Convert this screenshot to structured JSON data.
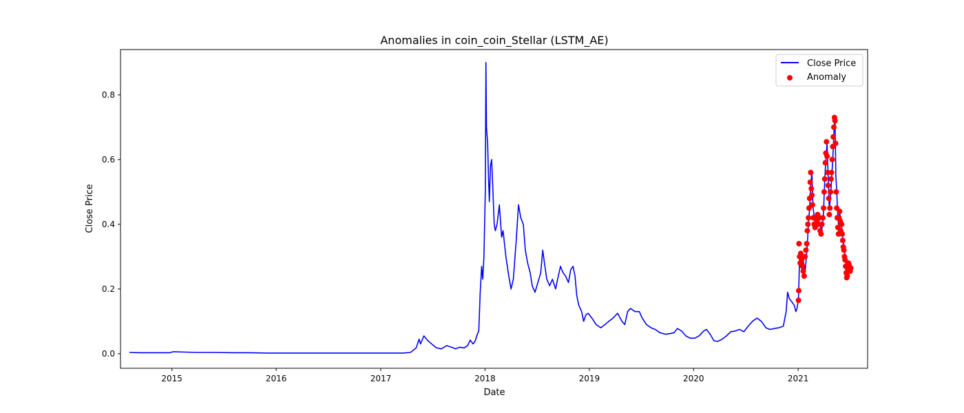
{
  "chart_data": {
    "type": "line",
    "title": "Anomalies in coin_coin_Stellar (LSTM_AE)",
    "xlabel": "Date",
    "ylabel": "Close Price",
    "xlim": [
      "2014-07-05",
      "2021-09-01"
    ],
    "ylim": [
      -0.045,
      0.94
    ],
    "x_ticks": [
      "2015-01-01",
      "2016-01-01",
      "2017-01-01",
      "2018-01-01",
      "2019-01-01",
      "2020-01-01",
      "2021-01-01"
    ],
    "x_tick_labels": [
      "2015",
      "2016",
      "2017",
      "2018",
      "2019",
      "2020",
      "2021"
    ],
    "y_ticks": [
      0.0,
      0.2,
      0.4,
      0.6,
      0.8
    ],
    "y_tick_labels": [
      "0.0",
      "0.2",
      "0.4",
      "0.6",
      "0.8"
    ],
    "grid": false,
    "legend": {
      "position": "upper-right",
      "entries": [
        "Close Price",
        "Anomaly"
      ]
    },
    "colors": {
      "line": "#0000ff",
      "anomaly": "#ff0000"
    },
    "series": [
      {
        "name": "Close Price",
        "kind": "line",
        "points": [
          [
            "2014-08-05",
            0.004
          ],
          [
            "2014-09-10",
            0.003
          ],
          [
            "2014-10-15",
            0.003
          ],
          [
            "2014-11-20",
            0.003
          ],
          [
            "2014-12-25",
            0.003
          ],
          [
            "2015-01-05",
            0.006
          ],
          [
            "2015-02-15",
            0.005
          ],
          [
            "2015-04-01",
            0.004
          ],
          [
            "2015-06-01",
            0.004
          ],
          [
            "2015-08-01",
            0.003
          ],
          [
            "2015-10-01",
            0.003
          ],
          [
            "2015-12-01",
            0.002
          ],
          [
            "2016-03-01",
            0.002
          ],
          [
            "2016-06-01",
            0.002
          ],
          [
            "2016-09-01",
            0.002
          ],
          [
            "2016-12-01",
            0.002
          ],
          [
            "2017-02-01",
            0.002
          ],
          [
            "2017-03-20",
            0.002
          ],
          [
            "2017-04-15",
            0.004
          ],
          [
            "2017-05-05",
            0.018
          ],
          [
            "2017-05-15",
            0.045
          ],
          [
            "2017-05-20",
            0.03
          ],
          [
            "2017-06-01",
            0.055
          ],
          [
            "2017-06-15",
            0.04
          ],
          [
            "2017-07-01",
            0.028
          ],
          [
            "2017-07-15",
            0.018
          ],
          [
            "2017-08-01",
            0.015
          ],
          [
            "2017-08-20",
            0.025
          ],
          [
            "2017-09-05",
            0.02
          ],
          [
            "2017-09-20",
            0.015
          ],
          [
            "2017-10-05",
            0.02
          ],
          [
            "2017-10-20",
            0.018
          ],
          [
            "2017-11-01",
            0.025
          ],
          [
            "2017-11-10",
            0.042
          ],
          [
            "2017-11-20",
            0.03
          ],
          [
            "2017-11-28",
            0.04
          ],
          [
            "2017-12-05",
            0.06
          ],
          [
            "2017-12-10",
            0.07
          ],
          [
            "2017-12-15",
            0.19
          ],
          [
            "2017-12-20",
            0.27
          ],
          [
            "2017-12-24",
            0.23
          ],
          [
            "2017-12-28",
            0.3
          ],
          [
            "2018-01-02",
            0.5
          ],
          [
            "2018-01-04",
            0.9
          ],
          [
            "2018-01-06",
            0.7
          ],
          [
            "2018-01-10",
            0.65
          ],
          [
            "2018-01-13",
            0.55
          ],
          [
            "2018-01-16",
            0.47
          ],
          [
            "2018-01-20",
            0.58
          ],
          [
            "2018-01-24",
            0.6
          ],
          [
            "2018-01-28",
            0.52
          ],
          [
            "2018-02-02",
            0.4
          ],
          [
            "2018-02-06",
            0.38
          ],
          [
            "2018-02-12",
            0.4
          ],
          [
            "2018-02-20",
            0.46
          ],
          [
            "2018-02-28",
            0.36
          ],
          [
            "2018-03-05",
            0.38
          ],
          [
            "2018-03-15",
            0.3
          ],
          [
            "2018-03-25",
            0.24
          ],
          [
            "2018-04-02",
            0.2
          ],
          [
            "2018-04-10",
            0.23
          ],
          [
            "2018-04-20",
            0.35
          ],
          [
            "2018-04-28",
            0.46
          ],
          [
            "2018-05-06",
            0.42
          ],
          [
            "2018-05-15",
            0.4
          ],
          [
            "2018-05-22",
            0.32
          ],
          [
            "2018-05-30",
            0.28
          ],
          [
            "2018-06-08",
            0.25
          ],
          [
            "2018-06-15",
            0.21
          ],
          [
            "2018-06-25",
            0.19
          ],
          [
            "2018-07-05",
            0.22
          ],
          [
            "2018-07-15",
            0.25
          ],
          [
            "2018-07-22",
            0.32
          ],
          [
            "2018-07-28",
            0.28
          ],
          [
            "2018-08-05",
            0.23
          ],
          [
            "2018-08-15",
            0.21
          ],
          [
            "2018-08-25",
            0.23
          ],
          [
            "2018-09-05",
            0.2
          ],
          [
            "2018-09-12",
            0.23
          ],
          [
            "2018-09-22",
            0.27
          ],
          [
            "2018-10-01",
            0.25
          ],
          [
            "2018-10-10",
            0.24
          ],
          [
            "2018-10-20",
            0.22
          ],
          [
            "2018-10-28",
            0.26
          ],
          [
            "2018-11-05",
            0.27
          ],
          [
            "2018-11-12",
            0.24
          ],
          [
            "2018-11-18",
            0.18
          ],
          [
            "2018-11-25",
            0.15
          ],
          [
            "2018-12-05",
            0.13
          ],
          [
            "2018-12-12",
            0.1
          ],
          [
            "2018-12-20",
            0.12
          ],
          [
            "2018-12-28",
            0.125
          ],
          [
            "2019-01-10",
            0.11
          ],
          [
            "2019-01-25",
            0.09
          ],
          [
            "2019-02-10",
            0.08
          ],
          [
            "2019-02-25",
            0.09
          ],
          [
            "2019-03-10",
            0.1
          ],
          [
            "2019-03-25",
            0.11
          ],
          [
            "2019-04-10",
            0.125
          ],
          [
            "2019-04-25",
            0.1
          ],
          [
            "2019-05-05",
            0.09
          ],
          [
            "2019-05-15",
            0.13
          ],
          [
            "2019-05-25",
            0.14
          ],
          [
            "2019-06-10",
            0.13
          ],
          [
            "2019-06-25",
            0.13
          ],
          [
            "2019-07-05",
            0.11
          ],
          [
            "2019-07-20",
            0.09
          ],
          [
            "2019-08-05",
            0.08
          ],
          [
            "2019-08-20",
            0.075
          ],
          [
            "2019-09-05",
            0.065
          ],
          [
            "2019-09-25",
            0.06
          ],
          [
            "2019-10-10",
            0.062
          ],
          [
            "2019-10-25",
            0.065
          ],
          [
            "2019-11-05",
            0.078
          ],
          [
            "2019-11-20",
            0.07
          ],
          [
            "2019-12-05",
            0.055
          ],
          [
            "2019-12-20",
            0.048
          ],
          [
            "2020-01-05",
            0.048
          ],
          [
            "2020-01-20",
            0.055
          ],
          [
            "2020-02-05",
            0.07
          ],
          [
            "2020-02-15",
            0.075
          ],
          [
            "2020-02-28",
            0.06
          ],
          [
            "2020-03-12",
            0.04
          ],
          [
            "2020-03-25",
            0.038
          ],
          [
            "2020-04-10",
            0.045
          ],
          [
            "2020-04-25",
            0.055
          ],
          [
            "2020-05-10",
            0.068
          ],
          [
            "2020-05-25",
            0.07
          ],
          [
            "2020-06-10",
            0.075
          ],
          [
            "2020-06-25",
            0.068
          ],
          [
            "2020-07-10",
            0.085
          ],
          [
            "2020-07-25",
            0.1
          ],
          [
            "2020-08-10",
            0.11
          ],
          [
            "2020-08-25",
            0.1
          ],
          [
            "2020-09-10",
            0.08
          ],
          [
            "2020-09-25",
            0.075
          ],
          [
            "2020-10-10",
            0.078
          ],
          [
            "2020-10-25",
            0.08
          ],
          [
            "2020-11-10",
            0.085
          ],
          [
            "2020-11-20",
            0.13
          ],
          [
            "2020-11-25",
            0.19
          ],
          [
            "2020-12-01",
            0.17
          ],
          [
            "2020-12-10",
            0.16
          ],
          [
            "2020-12-18",
            0.15
          ],
          [
            "2020-12-24",
            0.13
          ],
          [
            "2020-12-28",
            0.14
          ],
          [
            "2021-01-02",
            0.17
          ],
          [
            "2021-01-06",
            0.3
          ],
          [
            "2021-01-10",
            0.27
          ],
          [
            "2021-01-14",
            0.3
          ],
          [
            "2021-01-20",
            0.28
          ],
          [
            "2021-01-26",
            0.26
          ],
          [
            "2021-02-01",
            0.32
          ],
          [
            "2021-02-06",
            0.4
          ],
          [
            "2021-02-10",
            0.45
          ],
          [
            "2021-02-14",
            0.52
          ],
          [
            "2021-02-18",
            0.56
          ],
          [
            "2021-02-22",
            0.45
          ],
          [
            "2021-02-27",
            0.42
          ],
          [
            "2021-03-05",
            0.4
          ],
          [
            "2021-03-12",
            0.42
          ],
          [
            "2021-03-18",
            0.4
          ],
          [
            "2021-03-24",
            0.38
          ],
          [
            "2021-03-30",
            0.42
          ],
          [
            "2021-04-04",
            0.54
          ],
          [
            "2021-04-08",
            0.6
          ],
          [
            "2021-04-12",
            0.65
          ],
          [
            "2021-04-16",
            0.55
          ],
          [
            "2021-04-20",
            0.45
          ],
          [
            "2021-04-24",
            0.48
          ],
          [
            "2021-04-28",
            0.54
          ],
          [
            "2021-05-02",
            0.6
          ],
          [
            "2021-05-06",
            0.68
          ],
          [
            "2021-05-10",
            0.73
          ],
          [
            "2021-05-13",
            0.55
          ],
          [
            "2021-05-16",
            0.5
          ],
          [
            "2021-05-19",
            0.44
          ],
          [
            "2021-05-22",
            0.4
          ],
          [
            "2021-05-26",
            0.44
          ],
          [
            "2021-06-01",
            0.4
          ],
          [
            "2021-06-06",
            0.36
          ],
          [
            "2021-06-10",
            0.33
          ],
          [
            "2021-06-15",
            0.3
          ],
          [
            "2021-06-20",
            0.24
          ],
          [
            "2021-06-24",
            0.25
          ],
          [
            "2021-06-28",
            0.28
          ],
          [
            "2021-07-03",
            0.26
          ],
          [
            "2021-07-06",
            0.265
          ]
        ]
      },
      {
        "name": "Anomaly",
        "kind": "scatter",
        "points": [
          [
            "2021-01-02",
            0.165
          ],
          [
            "2021-01-03",
            0.195
          ],
          [
            "2021-01-04",
            0.34
          ],
          [
            "2021-01-06",
            0.3
          ],
          [
            "2021-01-08",
            0.28
          ],
          [
            "2021-01-10",
            0.31
          ],
          [
            "2021-01-13",
            0.29
          ],
          [
            "2021-01-16",
            0.27
          ],
          [
            "2021-01-19",
            0.255
          ],
          [
            "2021-01-22",
            0.24
          ],
          [
            "2021-01-25",
            0.3
          ],
          [
            "2021-01-28",
            0.32
          ],
          [
            "2021-01-31",
            0.34
          ],
          [
            "2021-02-02",
            0.38
          ],
          [
            "2021-02-04",
            0.4
          ],
          [
            "2021-02-06",
            0.42
          ],
          [
            "2021-02-08",
            0.45
          ],
          [
            "2021-02-10",
            0.48
          ],
          [
            "2021-02-12",
            0.53
          ],
          [
            "2021-02-14",
            0.56
          ],
          [
            "2021-02-16",
            0.51
          ],
          [
            "2021-02-18",
            0.49
          ],
          [
            "2021-02-20",
            0.46
          ],
          [
            "2021-02-23",
            0.42
          ],
          [
            "2021-02-26",
            0.4
          ],
          [
            "2021-03-01",
            0.39
          ],
          [
            "2021-03-04",
            0.42
          ],
          [
            "2021-03-07",
            0.41
          ],
          [
            "2021-03-10",
            0.43
          ],
          [
            "2021-03-13",
            0.4
          ],
          [
            "2021-03-16",
            0.42
          ],
          [
            "2021-03-19",
            0.38
          ],
          [
            "2021-03-22",
            0.37
          ],
          [
            "2021-03-25",
            0.4
          ],
          [
            "2021-03-28",
            0.42
          ],
          [
            "2021-03-31",
            0.45
          ],
          [
            "2021-04-02",
            0.5
          ],
          [
            "2021-04-04",
            0.54
          ],
          [
            "2021-04-06",
            0.59
          ],
          [
            "2021-04-08",
            0.62
          ],
          [
            "2021-04-10",
            0.655
          ],
          [
            "2021-04-12",
            0.61
          ],
          [
            "2021-04-14",
            0.56
          ],
          [
            "2021-04-16",
            0.52
          ],
          [
            "2021-04-18",
            0.48
          ],
          [
            "2021-04-20",
            0.43
          ],
          [
            "2021-04-22",
            0.45
          ],
          [
            "2021-04-24",
            0.5
          ],
          [
            "2021-04-26",
            0.54
          ],
          [
            "2021-04-28",
            0.56
          ],
          [
            "2021-04-30",
            0.6
          ],
          [
            "2021-05-02",
            0.64
          ],
          [
            "2021-05-04",
            0.67
          ],
          [
            "2021-05-06",
            0.7
          ],
          [
            "2021-05-08",
            0.73
          ],
          [
            "2021-05-10",
            0.72
          ],
          [
            "2021-05-12",
            0.65
          ],
          [
            "2021-05-14",
            0.5
          ],
          [
            "2021-05-16",
            0.45
          ],
          [
            "2021-05-18",
            0.42
          ],
          [
            "2021-05-20",
            0.39
          ],
          [
            "2021-05-22",
            0.37
          ],
          [
            "2021-05-24",
            0.42
          ],
          [
            "2021-05-26",
            0.44
          ],
          [
            "2021-05-28",
            0.41
          ],
          [
            "2021-05-30",
            0.38
          ],
          [
            "2021-06-02",
            0.4
          ],
          [
            "2021-06-04",
            0.37
          ],
          [
            "2021-06-06",
            0.35
          ],
          [
            "2021-06-08",
            0.33
          ],
          [
            "2021-06-10",
            0.32
          ],
          [
            "2021-06-12",
            0.3
          ],
          [
            "2021-06-14",
            0.29
          ],
          [
            "2021-06-16",
            0.27
          ],
          [
            "2021-06-18",
            0.25
          ],
          [
            "2021-06-20",
            0.235
          ],
          [
            "2021-06-22",
            0.24
          ],
          [
            "2021-06-24",
            0.26
          ],
          [
            "2021-06-26",
            0.28
          ],
          [
            "2021-06-28",
            0.275
          ],
          [
            "2021-06-30",
            0.26
          ],
          [
            "2021-07-02",
            0.255
          ],
          [
            "2021-07-04",
            0.265
          ]
        ]
      }
    ]
  }
}
